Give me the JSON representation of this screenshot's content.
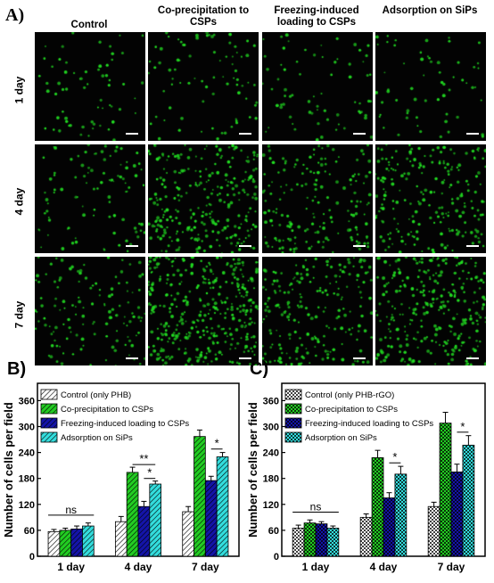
{
  "panel_a": {
    "label": "A)",
    "columns": [
      {
        "title": "Control"
      },
      {
        "title": "Co-precipitation to CSPs"
      },
      {
        "title": "Freezing-induced loading to CSPs"
      },
      {
        "title": "Adsorption on SiPs"
      }
    ],
    "rows": [
      {
        "label": "1 day",
        "cell_density": [
          65,
          80,
          70,
          60
        ]
      },
      {
        "label": "4 day",
        "cell_density": [
          95,
          260,
          170,
          205
        ]
      },
      {
        "label": "7 day",
        "cell_density": [
          130,
          360,
          210,
          280
        ]
      }
    ],
    "cell_color": "#22dd22"
  },
  "chart_data": [
    {
      "type": "bar",
      "label": "B)",
      "ylabel": "Number of cells per field",
      "ylim": [
        0,
        400
      ],
      "yticks": [
        0,
        60,
        120,
        180,
        240,
        300,
        360
      ],
      "categories": [
        "1 day",
        "4 day",
        "7 day"
      ],
      "series": [
        {
          "name": "Control (only PHB)",
          "values": [
            57,
            80,
            103
          ],
          "errors": [
            5,
            12,
            12
          ],
          "color": "#ffffff",
          "pattern": "hatch"
        },
        {
          "name": "Co-precipitation to CSPs",
          "values": [
            60,
            194,
            277
          ],
          "errors": [
            5,
            12,
            15
          ],
          "color": "#22cc22",
          "pattern": "hatch"
        },
        {
          "name": "Freezing-induced loading to CSPs",
          "values": [
            63,
            115,
            175
          ],
          "errors": [
            7,
            12,
            10
          ],
          "color": "#1414a8",
          "pattern": "hatch"
        },
        {
          "name": "Adsorption on SiPs",
          "values": [
            70,
            167,
            230
          ],
          "errors": [
            7,
            7,
            10
          ],
          "color": "#33dddd",
          "pattern": "hatch"
        }
      ],
      "annotations": [
        {
          "text": "ns",
          "category": 0
        },
        {
          "text": "**",
          "category": 1
        },
        {
          "text": "*",
          "category": 1
        },
        {
          "text": "*",
          "category": 2
        }
      ]
    },
    {
      "type": "bar",
      "label": "C)",
      "ylabel": "Number of cells per field",
      "ylim": [
        0,
        400
      ],
      "yticks": [
        0,
        60,
        120,
        180,
        240,
        300,
        360
      ],
      "categories": [
        "1 day",
        "4 day",
        "7 day"
      ],
      "series": [
        {
          "name": "Control (only PHB-rGO)",
          "values": [
            65,
            90,
            115
          ],
          "errors": [
            7,
            8,
            10
          ],
          "color": "#ffffff",
          "pattern": "checker"
        },
        {
          "name": "Co-precipitation to CSPs",
          "values": [
            77,
            228,
            308
          ],
          "errors": [
            7,
            17,
            25
          ],
          "color": "#22cc22",
          "pattern": "checker"
        },
        {
          "name": "Freezing-induced loading to CSPs",
          "values": [
            75,
            135,
            195
          ],
          "errors": [
            5,
            12,
            18
          ],
          "color": "#1414a8",
          "pattern": "checker"
        },
        {
          "name": "Adsorption on SiPs",
          "values": [
            65,
            190,
            257
          ],
          "errors": [
            5,
            18,
            22
          ],
          "color": "#33dddd",
          "pattern": "checker"
        }
      ],
      "annotations": [
        {
          "text": "ns",
          "category": 0
        },
        {
          "text": "*",
          "category": 1
        },
        {
          "text": "*",
          "category": 2
        }
      ]
    }
  ]
}
